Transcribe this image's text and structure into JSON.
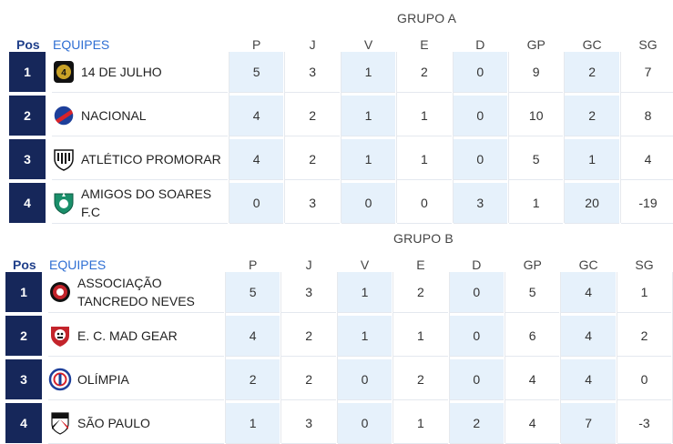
{
  "columns": [
    "P",
    "J",
    "V",
    "E",
    "D",
    "GP",
    "GC",
    "SG"
  ],
  "pos_label": "Pos",
  "team_label": "EQUIPES",
  "groups": [
    {
      "title": "GRUPO A",
      "rows": [
        {
          "pos": "1",
          "team": "14 DE JULHO",
          "crest": "crest-14-de-julho",
          "stats": [
            "5",
            "3",
            "1",
            "2",
            "0",
            "9",
            "2",
            "7"
          ]
        },
        {
          "pos": "2",
          "team": "NACIONAL",
          "crest": "crest-nacional",
          "stats": [
            "4",
            "2",
            "1",
            "1",
            "0",
            "10",
            "2",
            "8"
          ]
        },
        {
          "pos": "3",
          "team": "ATLÉTICO PROMORAR",
          "crest": "crest-atletico-promorar",
          "stats": [
            "4",
            "2",
            "1",
            "1",
            "0",
            "5",
            "1",
            "4"
          ]
        },
        {
          "pos": "4",
          "team": "AMIGOS DO SOARES F.C",
          "crest": "crest-amigos-do-soares",
          "stats": [
            "0",
            "3",
            "0",
            "0",
            "3",
            "1",
            "20",
            "-19"
          ]
        }
      ]
    },
    {
      "title": "GRUPO B",
      "rows": [
        {
          "pos": "1",
          "team": "ASSOCIAÇÃO TANCREDO NEVES",
          "crest": "crest-associacao-tancredo-neves",
          "stats": [
            "5",
            "3",
            "1",
            "2",
            "0",
            "5",
            "4",
            "1"
          ]
        },
        {
          "pos": "2",
          "team": "E. C. MAD GEAR",
          "crest": "crest-mad-gear",
          "stats": [
            "4",
            "2",
            "1",
            "1",
            "0",
            "6",
            "4",
            "2"
          ]
        },
        {
          "pos": "3",
          "team": "OLÍMPIA",
          "crest": "crest-olimpia",
          "stats": [
            "2",
            "2",
            "0",
            "2",
            "0",
            "4",
            "4",
            "0"
          ]
        },
        {
          "pos": "4",
          "team": "SÃO PAULO",
          "crest": "crest-sao-paulo",
          "stats": [
            "1",
            "3",
            "0",
            "1",
            "2",
            "4",
            "7",
            "-3"
          ]
        }
      ]
    }
  ]
}
